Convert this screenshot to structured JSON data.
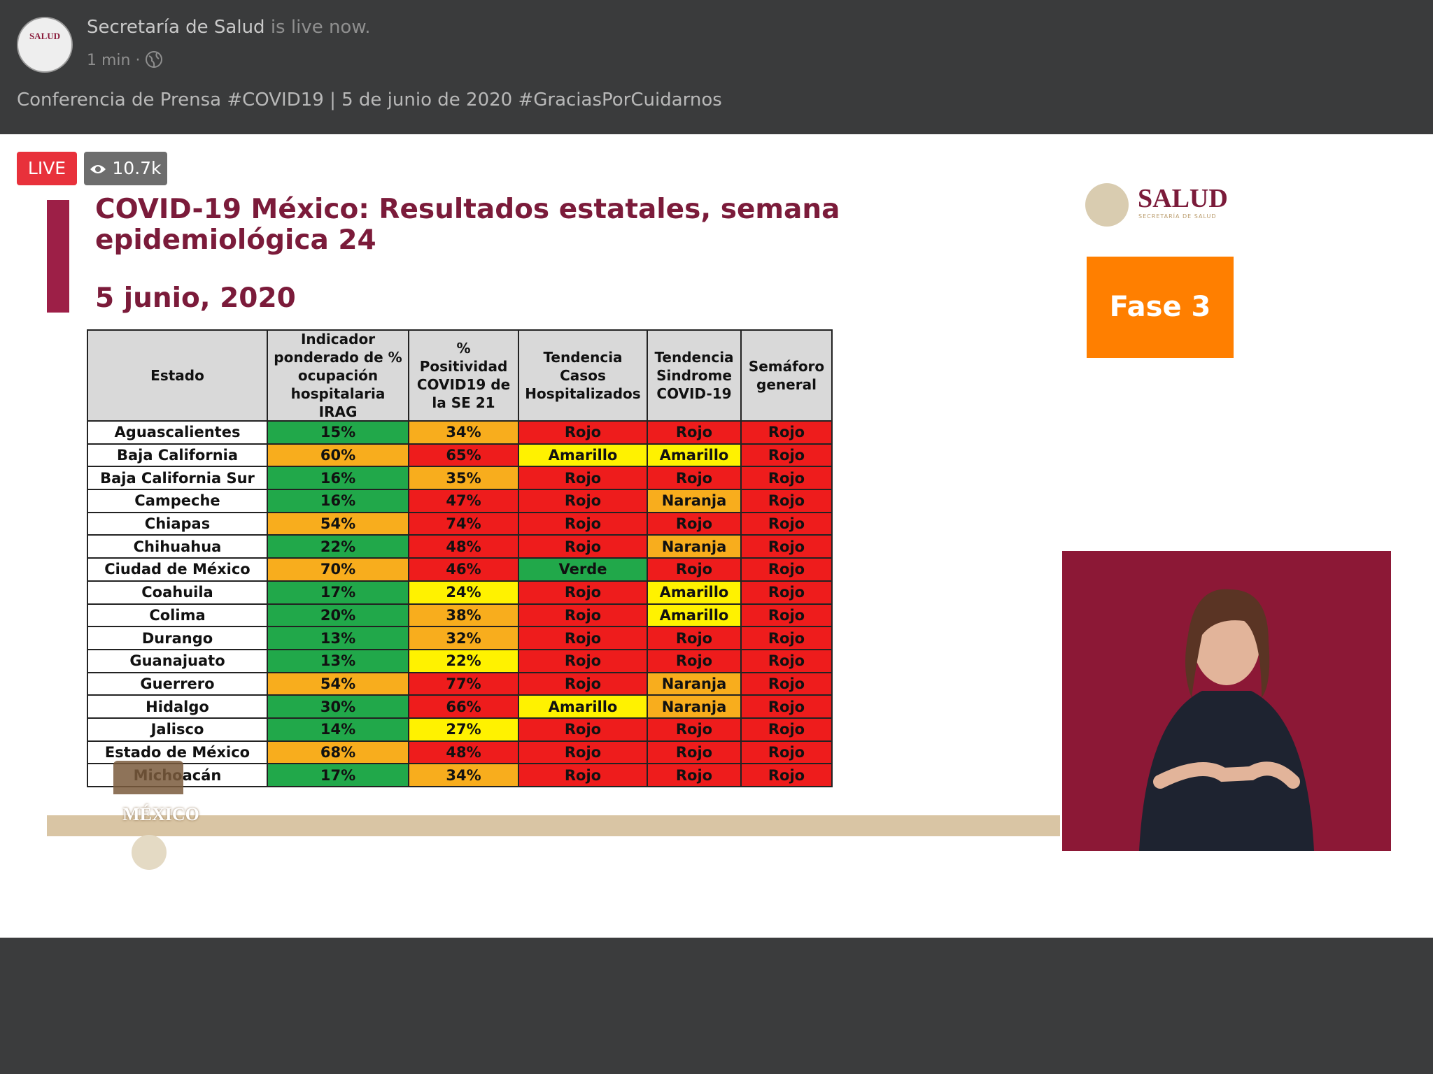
{
  "header": {
    "page_name": "Secretaría de Salud",
    "status": "is live now.",
    "avatar_text": "SALUD",
    "time": "1 min",
    "description": "Conferencia de Prensa #COVID19 | 5 de junio de 2020 #GraciasPorCuidarnos"
  },
  "live": {
    "badge": "LIVE",
    "views": "10.7k"
  },
  "slide": {
    "title": "COVID-19 México: Resultados estatales, semana epidemiológica 24",
    "date": "5 junio, 2020",
    "logo": "SALUD",
    "logo_sub": "SECRETARÍA DE SALUD",
    "phase": "Fase 3",
    "footer_logo": "MÉXICO"
  },
  "table": {
    "headers": [
      "Estado",
      "Indicador ponderado de % ocupación hospitalaria IRAG",
      "% Positividad COVID19 de la SE 21",
      "Tendencia Casos Hospitalizados",
      "Tendencia Sindrome COVID-19",
      "Semáforo general"
    ],
    "rows": [
      {
        "cells": [
          "Aguascalientes",
          "15%",
          "34%",
          "Rojo",
          "Rojo",
          "Rojo"
        ],
        "colors": [
          "#ffffff",
          "#21a84a",
          "#f8ad1d",
          "#ee1c1c",
          "#ee1c1c",
          "#ee1c1c"
        ]
      },
      {
        "cells": [
          "Baja California",
          "60%",
          "65%",
          "Amarillo",
          "Amarillo",
          "Rojo"
        ],
        "colors": [
          "#ffffff",
          "#f8ad1d",
          "#ee1c1c",
          "#fff200",
          "#fff200",
          "#ee1c1c"
        ]
      },
      {
        "cells": [
          "Baja California Sur",
          "16%",
          "35%",
          "Rojo",
          "Rojo",
          "Rojo"
        ],
        "colors": [
          "#ffffff",
          "#21a84a",
          "#f8ad1d",
          "#ee1c1c",
          "#ee1c1c",
          "#ee1c1c"
        ]
      },
      {
        "cells": [
          "Campeche",
          "16%",
          "47%",
          "Rojo",
          "Naranja",
          "Rojo"
        ],
        "colors": [
          "#ffffff",
          "#21a84a",
          "#ee1c1c",
          "#ee1c1c",
          "#f8ad1d",
          "#ee1c1c"
        ]
      },
      {
        "cells": [
          "Chiapas",
          "54%",
          "74%",
          "Rojo",
          "Rojo",
          "Rojo"
        ],
        "colors": [
          "#ffffff",
          "#f8ad1d",
          "#ee1c1c",
          "#ee1c1c",
          "#ee1c1c",
          "#ee1c1c"
        ]
      },
      {
        "cells": [
          "Chihuahua",
          "22%",
          "48%",
          "Rojo",
          "Naranja",
          "Rojo"
        ],
        "colors": [
          "#ffffff",
          "#21a84a",
          "#ee1c1c",
          "#ee1c1c",
          "#f8ad1d",
          "#ee1c1c"
        ]
      },
      {
        "cells": [
          "Ciudad de México",
          "70%",
          "46%",
          "Verde",
          "Rojo",
          "Rojo"
        ],
        "colors": [
          "#ffffff",
          "#f8ad1d",
          "#ee1c1c",
          "#21a84a",
          "#ee1c1c",
          "#ee1c1c"
        ]
      },
      {
        "cells": [
          "Coahuila",
          "17%",
          "24%",
          "Rojo",
          "Amarillo",
          "Rojo"
        ],
        "colors": [
          "#ffffff",
          "#21a84a",
          "#fff200",
          "#ee1c1c",
          "#fff200",
          "#ee1c1c"
        ]
      },
      {
        "cells": [
          "Colima",
          "20%",
          "38%",
          "Rojo",
          "Amarillo",
          "Rojo"
        ],
        "colors": [
          "#ffffff",
          "#21a84a",
          "#f8ad1d",
          "#ee1c1c",
          "#fff200",
          "#ee1c1c"
        ]
      },
      {
        "cells": [
          "Durango",
          "13%",
          "32%",
          "Rojo",
          "Rojo",
          "Rojo"
        ],
        "colors": [
          "#ffffff",
          "#21a84a",
          "#f8ad1d",
          "#ee1c1c",
          "#ee1c1c",
          "#ee1c1c"
        ]
      },
      {
        "cells": [
          "Guanajuato",
          "13%",
          "22%",
          "Rojo",
          "Rojo",
          "Rojo"
        ],
        "colors": [
          "#ffffff",
          "#21a84a",
          "#fff200",
          "#ee1c1c",
          "#ee1c1c",
          "#ee1c1c"
        ]
      },
      {
        "cells": [
          "Guerrero",
          "54%",
          "77%",
          "Rojo",
          "Naranja",
          "Rojo"
        ],
        "colors": [
          "#ffffff",
          "#f8ad1d",
          "#ee1c1c",
          "#ee1c1c",
          "#f8ad1d",
          "#ee1c1c"
        ]
      },
      {
        "cells": [
          "Hidalgo",
          "30%",
          "66%",
          "Amarillo",
          "Naranja",
          "Rojo"
        ],
        "colors": [
          "#ffffff",
          "#21a84a",
          "#ee1c1c",
          "#fff200",
          "#f8ad1d",
          "#ee1c1c"
        ]
      },
      {
        "cells": [
          "Jalisco",
          "14%",
          "27%",
          "Rojo",
          "Rojo",
          "Rojo"
        ],
        "colors": [
          "#ffffff",
          "#21a84a",
          "#fff200",
          "#ee1c1c",
          "#ee1c1c",
          "#ee1c1c"
        ]
      },
      {
        "cells": [
          "Estado de México",
          "68%",
          "48%",
          "Rojo",
          "Rojo",
          "Rojo"
        ],
        "colors": [
          "#ffffff",
          "#f8ad1d",
          "#ee1c1c",
          "#ee1c1c",
          "#ee1c1c",
          "#ee1c1c"
        ]
      },
      {
        "cells": [
          "Michoacán",
          "17%",
          "34%",
          "Rojo",
          "Rojo",
          "Rojo"
        ],
        "colors": [
          "#ffffff",
          "#21a84a",
          "#f8ad1d",
          "#ee1c1c",
          "#ee1c1c",
          "#ee1c1c"
        ]
      }
    ]
  }
}
